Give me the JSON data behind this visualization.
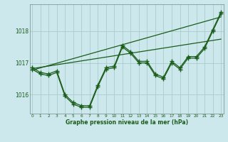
{
  "title": "Graphe pression niveau de la mer (hPa)",
  "bg_color": "#cce8ec",
  "grid_color": "#aacccc",
  "line_color": "#1a5c1a",
  "x_ticks": [
    0,
    1,
    2,
    3,
    4,
    5,
    6,
    7,
    8,
    9,
    10,
    11,
    12,
    13,
    14,
    15,
    16,
    17,
    18,
    19,
    20,
    21,
    22,
    23
  ],
  "y_ticks": [
    1016,
    1017,
    1018
  ],
  "ylim": [
    1015.4,
    1018.85
  ],
  "xlim": [
    -0.3,
    23.3
  ],
  "series1": [
    1016.85,
    1016.7,
    1016.65,
    1016.75,
    1016.0,
    1015.75,
    1015.65,
    1015.65,
    1016.3,
    1016.85,
    1016.9,
    1017.55,
    1017.35,
    1017.05,
    1017.05,
    1016.65,
    1016.55,
    1017.05,
    1016.85,
    1017.2,
    1017.2,
    1017.5,
    1018.05,
    1018.6
  ],
  "series2": [
    1016.8,
    1016.65,
    1016.6,
    1016.7,
    1015.95,
    1015.7,
    1015.6,
    1015.6,
    1016.25,
    1016.8,
    1016.85,
    1017.5,
    1017.3,
    1017.0,
    1017.0,
    1016.6,
    1016.5,
    1017.0,
    1016.8,
    1017.15,
    1017.15,
    1017.45,
    1018.0,
    1018.55
  ],
  "trend1_x": [
    0,
    23
  ],
  "trend1_y": [
    1016.82,
    1017.75
  ],
  "trend2_x": [
    0,
    23
  ],
  "trend2_y": [
    1016.77,
    1018.45
  ]
}
